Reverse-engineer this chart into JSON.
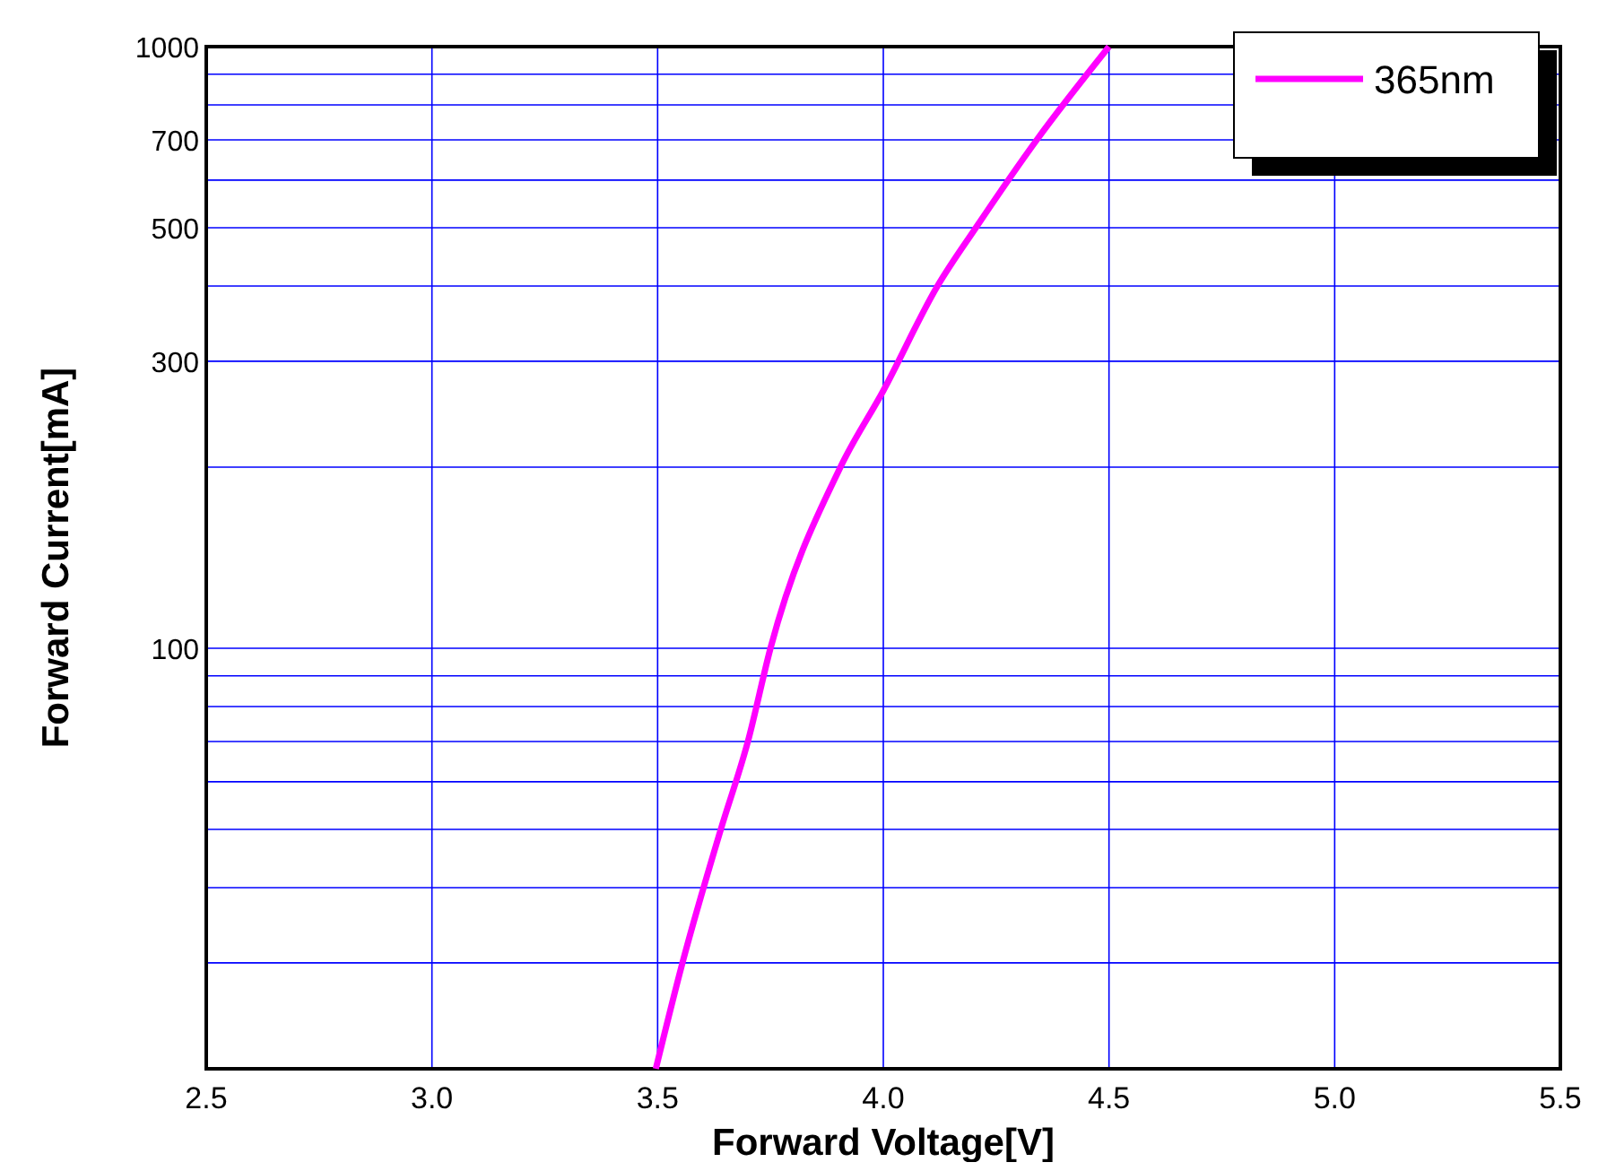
{
  "chart_data": {
    "type": "line",
    "xlabel": "Forward Voltage[V]",
    "ylabel": "Forward Current[mA]",
    "log": "y",
    "grid": true,
    "legend": "top right",
    "line_style": "solid",
    "xlim": [
      2.5,
      5.5
    ],
    "xticks": [
      {
        "value": 2.5,
        "label": "2.5"
      },
      {
        "value": 3,
        "label": "3.0"
      },
      {
        "value": 3.5,
        "label": "3.5"
      },
      {
        "value": 4,
        "label": "4.0"
      },
      {
        "value": 4.5,
        "label": "4.5"
      },
      {
        "value": 5,
        "label": "5.0"
      },
      {
        "value": 5.5,
        "label": "5.5"
      }
    ],
    "ylim": [
      20,
      1000
    ],
    "yticks": [
      {
        "value": 30,
        "label": null
      },
      {
        "value": 40,
        "label": null
      },
      {
        "value": 50,
        "label": null
      },
      {
        "value": 60,
        "label": null
      },
      {
        "value": 70,
        "label": null
      },
      {
        "value": 80,
        "label": null
      },
      {
        "value": 90,
        "label": null
      },
      100,
      {
        "value": 200,
        "label": null
      },
      300,
      {
        "value": 400,
        "label": null
      },
      500,
      {
        "value": 600,
        "label": null
      },
      700,
      {
        "value": 800,
        "label": null
      },
      {
        "value": 900,
        "label": null
      },
      1000
    ],
    "series": [
      {
        "name": "365nm",
        "color": "#ff00ff",
        "x": [
          3.496,
          3.555,
          3.64,
          3.7,
          3.75,
          3.905,
          4.0,
          4.12,
          4.205,
          4.34,
          4.5
        ],
        "values": [
          20,
          30,
          50,
          70,
          100,
          200,
          268,
          400,
          500,
          700,
          1000
        ]
      }
    ]
  }
}
